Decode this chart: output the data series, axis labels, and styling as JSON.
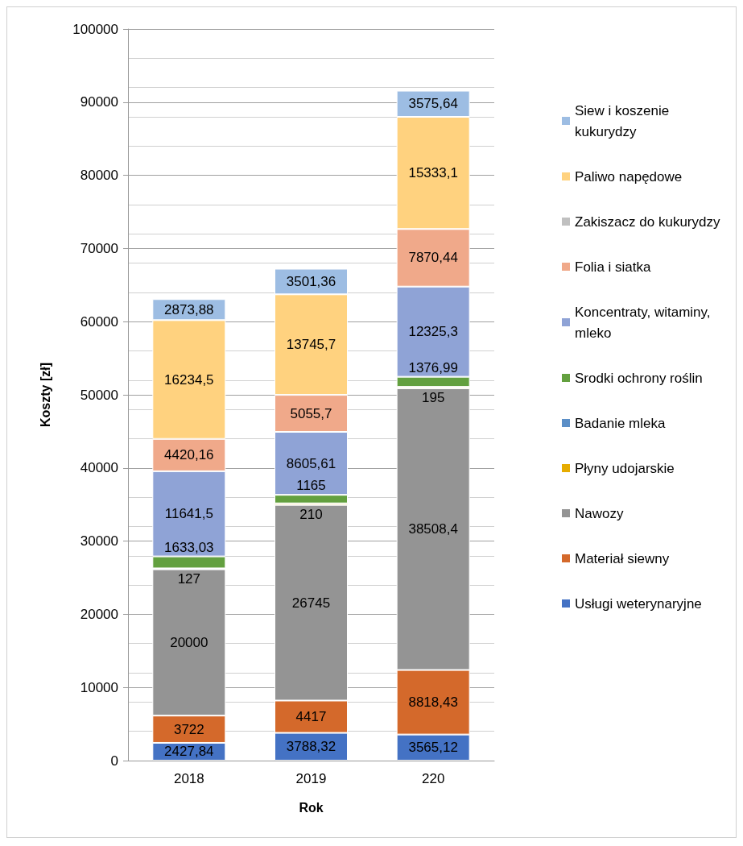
{
  "chart_data": {
    "type": "bar",
    "stacked": true,
    "xlabel": "Rok",
    "ylabel": "Koszty [zł]",
    "categories": [
      "2018",
      "2019",
      "220"
    ],
    "series": [
      {
        "name": "Usługi weterynaryjne",
        "color": "#4472c4",
        "values": [
          2427.84,
          3788.32,
          3565.12
        ],
        "value_labels": [
          "2427,84",
          "3788,32",
          "3565,12"
        ]
      },
      {
        "name": "Materiał siewny",
        "color": "#d4692b",
        "values": [
          3722,
          4417,
          8818.43
        ],
        "value_labels": [
          "3722",
          "4417",
          "8818,43"
        ]
      },
      {
        "name": "Nawozy",
        "color": "#949494",
        "values": [
          20000,
          26745,
          38508.4
        ],
        "value_labels": [
          "20000",
          "26745",
          "38508,4"
        ]
      },
      {
        "name": "Płyny udojarskie",
        "color": "#e6ac00",
        "values": [
          127,
          210,
          195
        ],
        "value_labels": [
          "127",
          "210",
          "195"
        ]
      },
      {
        "name": "Badanie mleka",
        "color": "#5b8fc7",
        "values": [
          null,
          null,
          null
        ]
      },
      {
        "name": "Srodki ochrony roślin",
        "color": "#63a03f",
        "values": [
          1633.03,
          1165,
          1376.99
        ],
        "value_labels": [
          "1633,03",
          "1165",
          "1376,99"
        ]
      },
      {
        "name": "Koncentraty, witaminy, mleko",
        "color": "#8fa3d6",
        "values": [
          11641.5,
          8605.61,
          12325.3
        ],
        "value_labels": [
          "11641,5",
          "8605,61",
          "12325,3"
        ]
      },
      {
        "name": "Folia i siatka",
        "color": "#f0a98a",
        "values": [
          4420.16,
          5055.7,
          7870.44
        ],
        "value_labels": [
          "4420,16",
          "5055,7",
          "7870,44"
        ]
      },
      {
        "name": "Zakiszacz do kukurydzy",
        "color": "#c0c0c0",
        "values": [
          null,
          null,
          null
        ]
      },
      {
        "name": "Paliwo napędowe",
        "color": "#ffd27f",
        "values": [
          16234.5,
          13745.7,
          15333.1
        ],
        "value_labels": [
          "16234,5",
          "13745,7",
          "15333,1"
        ]
      },
      {
        "name": "Siew i koszenie kukurydzy",
        "color": "#9dbde3",
        "values": [
          2873.88,
          3501.36,
          3575.64
        ],
        "value_labels": [
          "2873,88",
          "3501,36",
          "3575,64"
        ]
      }
    ],
    "ylim": [
      0,
      100000
    ],
    "yticks": [
      0,
      10000,
      20000,
      30000,
      40000,
      50000,
      60000,
      70000,
      80000,
      90000,
      100000
    ],
    "grid": "y",
    "legend": "right"
  }
}
